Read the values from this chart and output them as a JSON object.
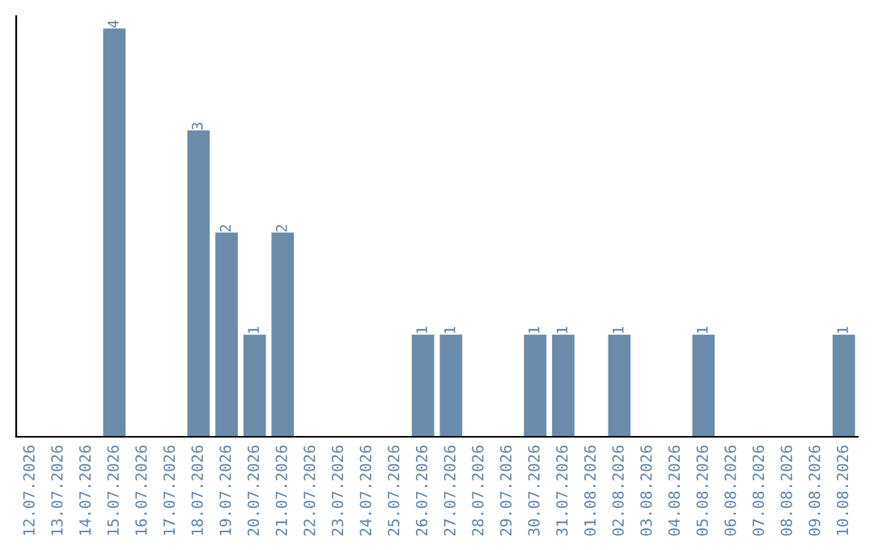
{
  "chart_data": {
    "type": "bar",
    "categories": [
      "12.07.2026",
      "13.07.2026",
      "14.07.2026",
      "15.07.2026",
      "16.07.2026",
      "17.07.2026",
      "18.07.2026",
      "19.07.2026",
      "20.07.2026",
      "21.07.2026",
      "22.07.2026",
      "23.07.2026",
      "24.07.2026",
      "25.07.2026",
      "26.07.2026",
      "27.07.2026",
      "28.07.2026",
      "29.07.2026",
      "30.07.2026",
      "31.07.2026",
      "01.08.2026",
      "02.08.2026",
      "03.08.2026",
      "04.08.2026",
      "05.08.2026",
      "06.08.2026",
      "07.08.2026",
      "08.08.2026",
      "09.08.2026",
      "10.08.2026"
    ],
    "values": [
      0,
      0,
      0,
      4,
      0,
      0,
      3,
      2,
      1,
      2,
      0,
      0,
      0,
      0,
      1,
      1,
      0,
      0,
      1,
      1,
      0,
      1,
      0,
      0,
      1,
      0,
      0,
      0,
      0,
      1
    ],
    "color": "#6a8caa",
    "value_labels": [
      null,
      null,
      null,
      "4",
      null,
      null,
      "3",
      "2",
      "1",
      "2",
      null,
      null,
      null,
      null,
      "1",
      "1",
      null,
      null,
      "1",
      "1",
      null,
      "1",
      null,
      null,
      "1",
      null,
      null,
      null,
      null,
      "1"
    ],
    "tick_labels": "x",
    "grid": false,
    "legend": false
  }
}
